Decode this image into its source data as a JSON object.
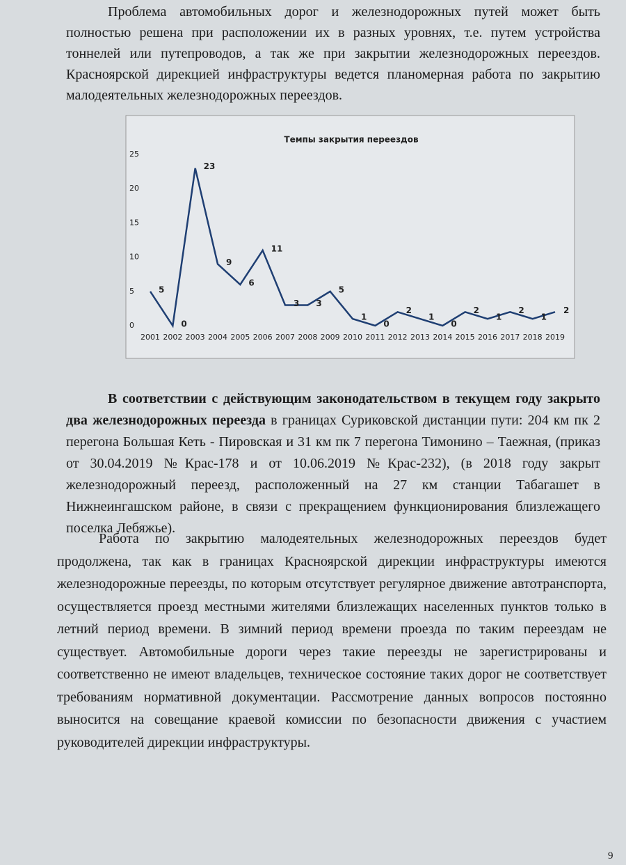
{
  "paragraphs": [
    {
      "parts": [
        {
          "text": "Проблема автомобильных дорог и железнодорожных путей может быть полностью решена при расположении их в разных уровнях, т.е. путем устройства тоннелей или путепроводов, а так же при закрытии железнодорожных переездов. Красноярской дирекцией инфраструктуры ведется планомерная работа по закрытию малодеятельных железнодорожных переездов.",
          "bold": false
        }
      ]
    },
    {
      "parts": [
        {
          "text": "В соответствии с действующим законодательством в текущем году закрыто два железнодорожных переезда",
          "bold": true
        },
        {
          "text": " в границах Суриковской дистанции пути: 204 км пк 2 перегона Большая Кеть - Пировская и 31 км пк 7 перегона Тимонино – Таежная, (приказ от 30.04.2019 №Крас-178 и от 10.06.2019 №Крас-232), (в 2018 году закрыт железнодорожный переезд, расположенный на 27 км станции Табагашет в Нижнеингашском районе, в связи с прекращением функционирования близлежащего поселка Лебяжье).",
          "bold": false
        }
      ]
    },
    {
      "parts": [
        {
          "text": "Работа по закрытию малодеятельных железнодорожных переездов будет продолжена, так как в границах Красноярской дирекции инфраструктуры имеются железнодорожные переезды, по которым отсутствует регулярное движение автотранспорта, осуществляется проезд местными жителями близлежащих населенных пунктов только в летний период времени. В зимний период времени проезда по таким переездам не существует. Автомобильные дороги через такие переезды не зарегистрированы и соответственно не имеют владельцев, техническое состояние таких дорог не соответствует требованиям нормативной документации. Рассмотрение данных вопросов постоянно выносится на совещание краевой комиссии по безопасности движения с участием руководителей дирекции инфраструктуры.",
          "bold": false
        }
      ]
    }
  ],
  "chart_data": {
    "type": "line",
    "title": "Темпы закрытия переездов",
    "categories": [
      "2001",
      "2002",
      "2003",
      "2004",
      "2005",
      "2006",
      "2007",
      "2008",
      "2009",
      "2010",
      "2011",
      "2012",
      "2013",
      "2014",
      "2015",
      "2016",
      "2017",
      "2018",
      "2019"
    ],
    "values": [
      5,
      0,
      23,
      9,
      6,
      11,
      3,
      3,
      5,
      1,
      0,
      2,
      1,
      0,
      2,
      1,
      2,
      1,
      2
    ],
    "color": "#1f3f73",
    "ylim": [
      0,
      25
    ],
    "yticks": [
      0,
      5,
      10,
      15,
      20,
      25
    ],
    "data_labels": true
  },
  "page_number": "9"
}
